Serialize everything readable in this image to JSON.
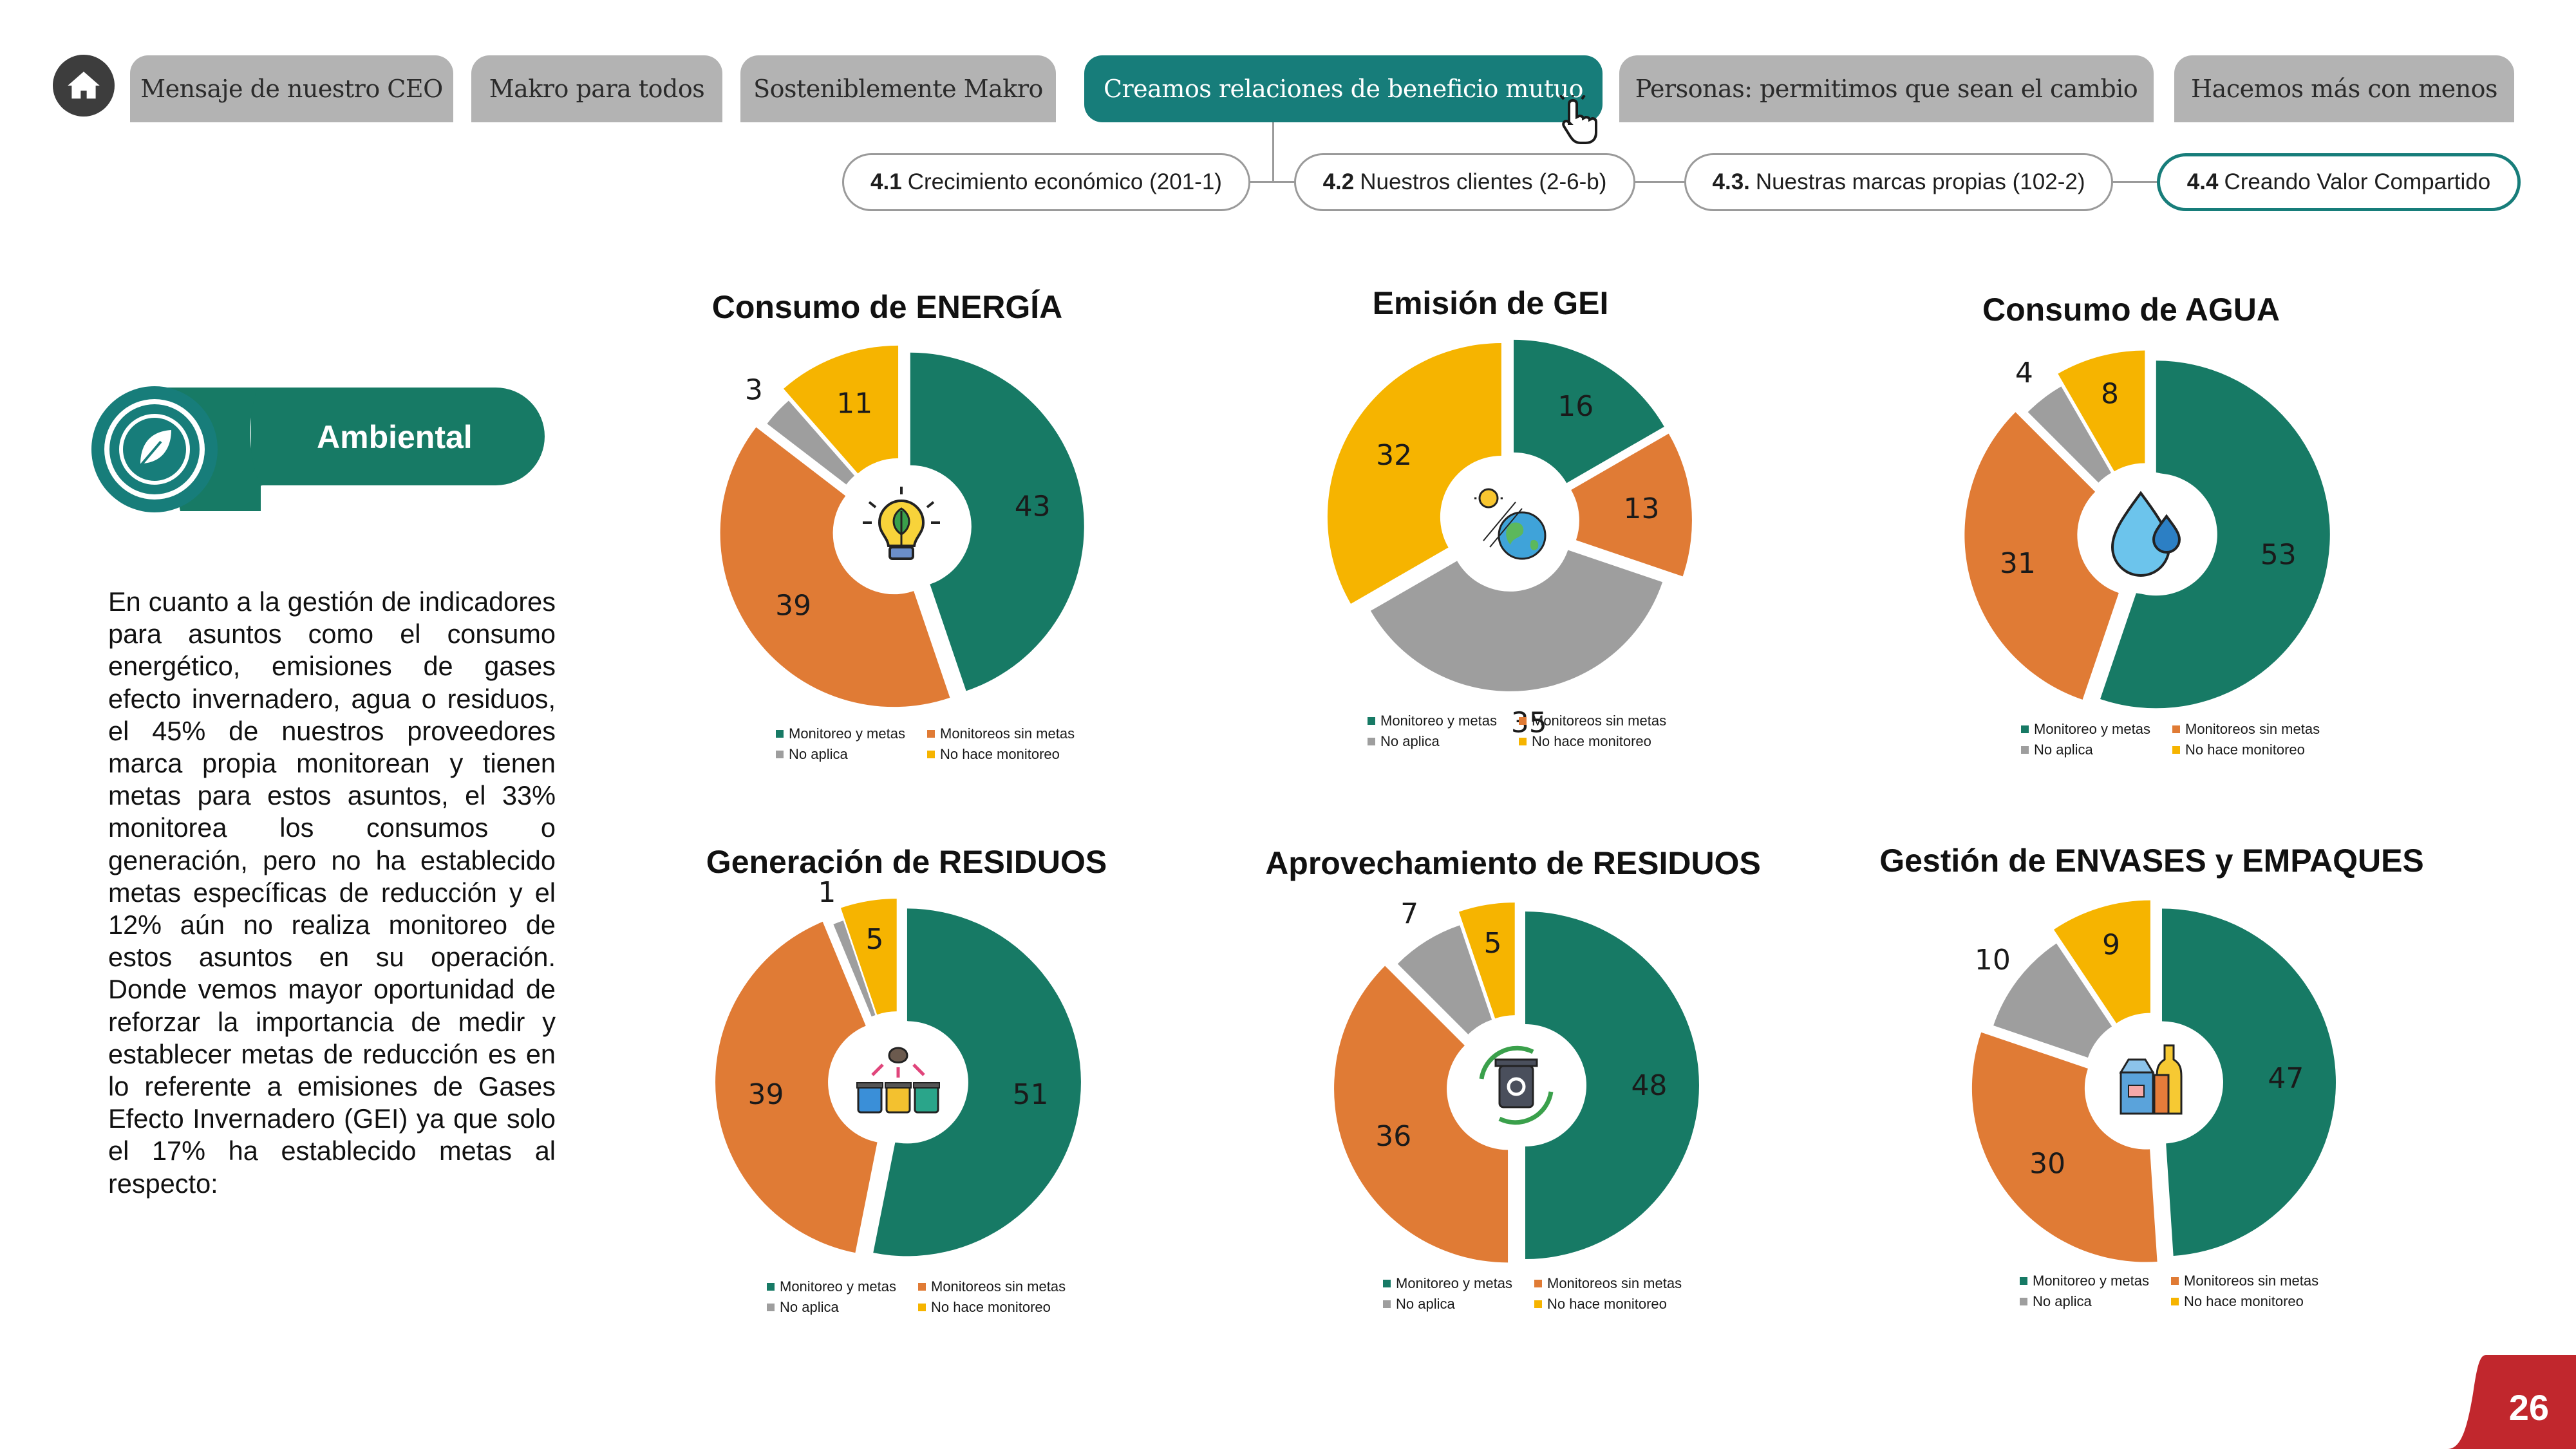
{
  "nav": {
    "home_label": "home",
    "tabs": [
      {
        "label": "Mensaje de nuestro CEO"
      },
      {
        "label": "Makro para todos"
      },
      {
        "label": "Sosteniblemente Makro"
      },
      {
        "label": "Creamos relaciones de beneficio mutuo",
        "active": true
      },
      {
        "label": "Personas: permitimos que sean el cambio"
      },
      {
        "label": "Hacemos más con menos"
      }
    ],
    "subtabs": [
      {
        "num": "4.1",
        "label": "Crecimiento económico (201-1)"
      },
      {
        "num": "4.2",
        "label": "Nuestros clientes (2-6-b)"
      },
      {
        "num": "4.3.",
        "label": "Nuestras marcas propias (102-2)"
      },
      {
        "num": "4.4",
        "label": "Creando Valor Compartido",
        "active": true
      }
    ]
  },
  "section": {
    "badge": "Ambiental",
    "intro": "En cuanto a la gestión de indicadores para asuntos como el consumo energético, emisiones de gases efecto invernadero, agua o residuos, el 45% de nuestros proveedores marca propia monitorean y tienen metas para estos asuntos, el 33% monitorea los consumos o generación, pero no ha establecido metas específicas de reducción y el 12% aún no realiza monitoreo de estos asuntos en su operación. Donde vemos mayor oportunidad de reforzar la importancia de medir y establecer metas de reducción es en lo referente a emisiones de Gases Efecto Invernadero (GEI) ya que solo el 17% ha establecido metas al respecto:"
  },
  "colors": {
    "monitoreo_y_metas": "#177a65",
    "monitoreos_sin_metas": "#e07b35",
    "no_aplica": "#9e9e9e",
    "no_hace_monitoreo": "#f6b400",
    "accent": "#177d7a",
    "page_tab": "#c1272d"
  },
  "legend": [
    "Monitoreo y metas",
    "Monitoreos sin metas",
    "No aplica",
    "No hace monitoreo"
  ],
  "chart_data": [
    {
      "type": "pie",
      "title": "Consumo de ENERGÍA",
      "icon": "lightbulb-leaf-icon",
      "categories": [
        "Monitoreo y metas",
        "Monitoreos sin metas",
        "No aplica",
        "No hace monitoreo"
      ],
      "values": [
        43,
        39,
        3,
        11
      ]
    },
    {
      "type": "pie",
      "title": "Emisión de GEI",
      "icon": "earth-sun-icon",
      "categories": [
        "Monitoreo y metas",
        "Monitoreos sin metas",
        "No aplica",
        "No hace monitoreo"
      ],
      "values": [
        16,
        13,
        35,
        32
      ]
    },
    {
      "type": "pie",
      "title": "Consumo de AGUA",
      "icon": "water-drops-icon",
      "categories": [
        "Monitoreo y metas",
        "Monitoreos sin metas",
        "No aplica",
        "No hace monitoreo"
      ],
      "values": [
        53,
        31,
        4,
        8
      ]
    },
    {
      "type": "pie",
      "title": "Generación de RESIDUOS",
      "icon": "waste-bins-icon",
      "categories": [
        "Monitoreo y metas",
        "Monitoreos sin metas",
        "No aplica",
        "No hace monitoreo"
      ],
      "values": [
        51,
        39,
        1,
        5
      ]
    },
    {
      "type": "pie",
      "title": "Aprovechamiento de RESIDUOS",
      "icon": "recycle-bin-icon",
      "categories": [
        "Monitoreo y metas",
        "Monitoreos sin metas",
        "No aplica",
        "No hace monitoreo"
      ],
      "values": [
        48,
        36,
        7,
        5
      ]
    },
    {
      "type": "pie",
      "title": "Gestión de ENVASES y EMPAQUES",
      "icon": "packaging-icon",
      "categories": [
        "Monitoreo y metas",
        "Monitoreos sin metas",
        "No aplica",
        "No hace monitoreo"
      ],
      "values": [
        47,
        30,
        10,
        9
      ]
    }
  ],
  "page": {
    "number": "26"
  }
}
